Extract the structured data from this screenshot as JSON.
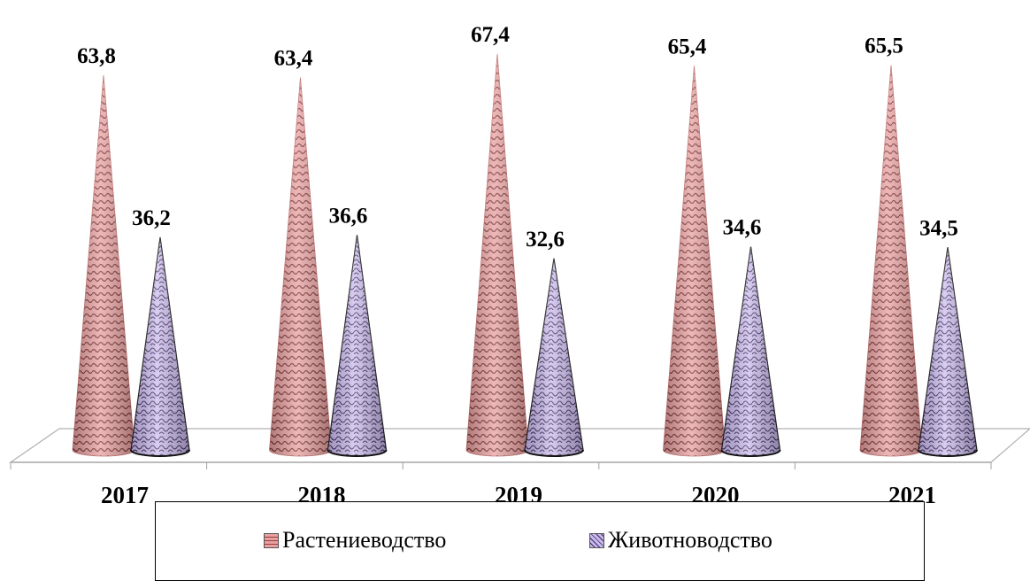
{
  "chart_data": {
    "type": "bar",
    "categories": [
      "2017",
      "2018",
      "2019",
      "2020",
      "2021"
    ],
    "series": [
      {
        "name": "Растениеводство",
        "values": [
          63.8,
          63.4,
          67.4,
          65.4,
          65.5
        ],
        "labels": [
          "63,8",
          "63,4",
          "67,4",
          "65,4",
          "65,5"
        ],
        "color": "#e8a0a0"
      },
      {
        "name": "Животноводство",
        "values": [
          36.2,
          36.6,
          32.6,
          34.6,
          34.5
        ],
        "labels": [
          "36,2",
          "36,6",
          "32,6",
          "34,6",
          "34,5"
        ],
        "color": "#c2b0e6"
      }
    ],
    "ylim": [
      0,
      70
    ],
    "grid": false,
    "legend": "bottom"
  }
}
